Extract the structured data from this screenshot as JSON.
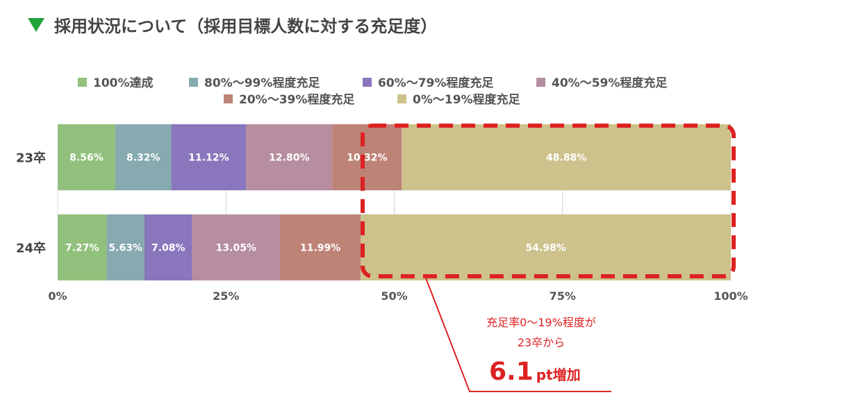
{
  "title": "採用状況について（採用目標人数に対する充足度）",
  "title_icon": "green-down-triangle-icon",
  "chart_data": {
    "type": "bar",
    "orientation": "horizontal",
    "stacked": true,
    "percent": true,
    "categories": [
      "23卒",
      "24卒"
    ],
    "series": [
      {
        "name": "100%達成",
        "color": "#92c17d",
        "values": [
          8.56,
          7.27
        ],
        "labels": [
          "8.56%",
          "7.27%"
        ]
      },
      {
        "name": "80%〜99%程度充足",
        "color": "#86aab0",
        "values": [
          8.32,
          5.63
        ],
        "labels": [
          "8.32%",
          "5.63%"
        ]
      },
      {
        "name": "60%〜79%程度充足",
        "color": "#8a76bd",
        "values": [
          11.12,
          7.08
        ],
        "labels": [
          "11.12%",
          "7.08%"
        ]
      },
      {
        "name": "40%〜59%程度充足",
        "color": "#b78e9f",
        "values": [
          12.8,
          13.05
        ],
        "labels": [
          "12.80%",
          "13.05%"
        ]
      },
      {
        "name": "20%〜39%程度充足",
        "color": "#be8377",
        "values": [
          10.32,
          11.99
        ],
        "labels": [
          "10.32%",
          "11.99%"
        ]
      },
      {
        "name": "0%〜19%程度充足",
        "color": "#cdc18c",
        "values": [
          48.88,
          54.98
        ],
        "labels": [
          "48.88%",
          "54.98%"
        ]
      }
    ],
    "xlim": [
      0,
      100
    ],
    "x_ticks": [
      "0%",
      "25%",
      "50%",
      "75%",
      "100%"
    ],
    "grid": true,
    "legend_position": "top",
    "annotation": {
      "line1": "充足率0〜19%程度が",
      "line2": "23卒から",
      "value": "6.1",
      "unit": "pt増加",
      "color": "#dd2222"
    }
  }
}
